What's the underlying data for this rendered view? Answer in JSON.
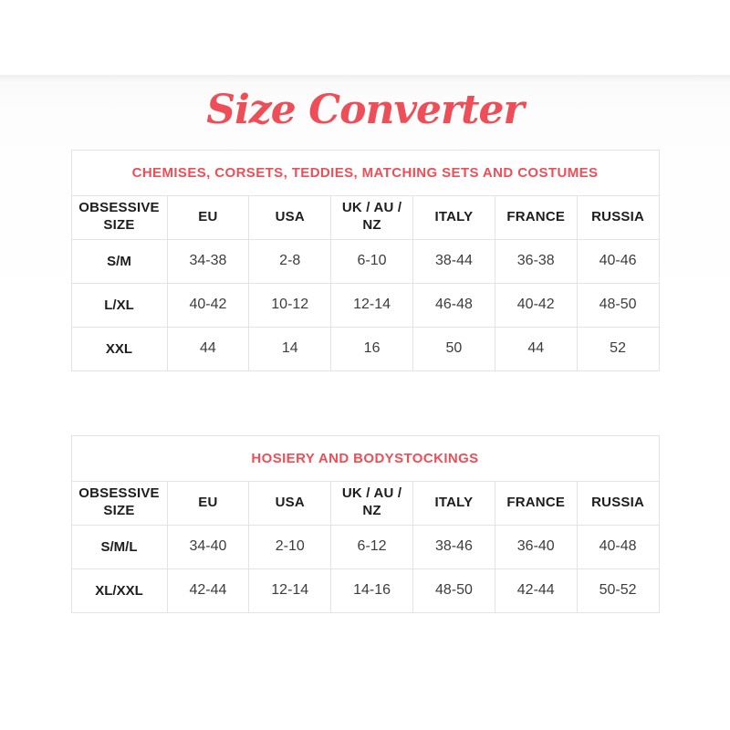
{
  "page": {
    "title": "Size Converter"
  },
  "colors": {
    "accent": "#ee4e57",
    "heading_text": "#1d1d1d",
    "cell_text": "#3d3d3d",
    "border": "#e3e3e3",
    "background": "#ffffff"
  },
  "tables": [
    {
      "caption": "CHEMISES, CORSETS, TEDDIES, MATCHING SETS AND COSTUMES",
      "columns": [
        "OBSESSIVE SIZE",
        "EU",
        "USA",
        "UK / AU / NZ",
        "ITALY",
        "FRANCE",
        "RUSSIA"
      ],
      "rows": [
        [
          "S/M",
          "34-38",
          "2-8",
          "6-10",
          "38-44",
          "36-38",
          "40-46"
        ],
        [
          "L/XL",
          "40-42",
          "10-12",
          "12-14",
          "46-48",
          "40-42",
          "48-50"
        ],
        [
          "XXL",
          "44",
          "14",
          "16",
          "50",
          "44",
          "52"
        ]
      ]
    },
    {
      "caption": "HOSIERY AND BODYSTOCKINGS",
      "columns": [
        "OBSESSIVE SIZE",
        "EU",
        "USA",
        "UK / AU / NZ",
        "ITALY",
        "FRANCE",
        "RUSSIA"
      ],
      "rows": [
        [
          "S/M/L",
          "34-40",
          "2-10",
          "6-12",
          "38-46",
          "36-40",
          "40-48"
        ],
        [
          "XL/XXL",
          "42-44",
          "12-14",
          "14-16",
          "48-50",
          "42-44",
          "50-52"
        ]
      ]
    }
  ]
}
